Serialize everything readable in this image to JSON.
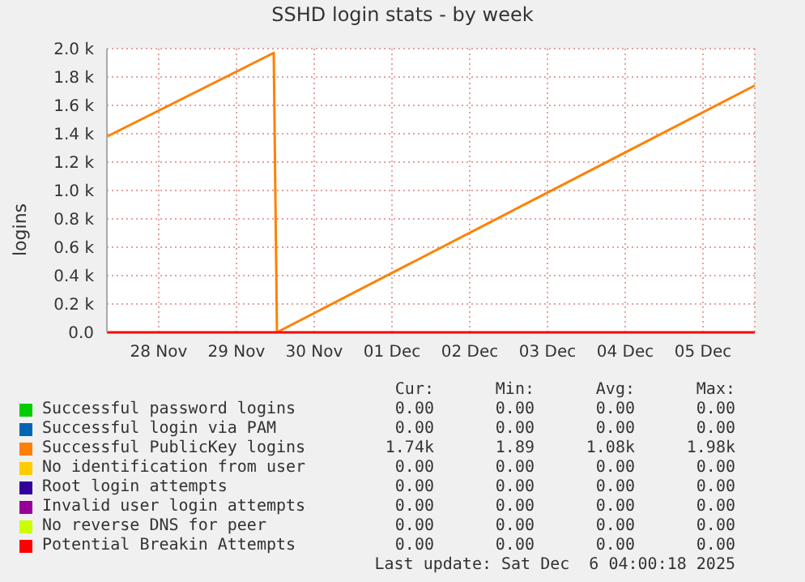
{
  "chart_data": {
    "type": "line",
    "title": "SSHD login stats - by week",
    "ylabel": "logins",
    "xlim": [
      "2025-11-27T20:00",
      "2025-12-06T04:00"
    ],
    "xticks": [
      {
        "value": "2025-11-28T12:00",
        "label": "28 Nov"
      },
      {
        "value": "2025-11-29T12:00",
        "label": "29 Nov"
      },
      {
        "value": "2025-11-30T12:00",
        "label": "30 Nov"
      },
      {
        "value": "2025-12-01T12:00",
        "label": "01 Dec"
      },
      {
        "value": "2025-12-02T12:00",
        "label": "02 Dec"
      },
      {
        "value": "2025-12-03T12:00",
        "label": "03 Dec"
      },
      {
        "value": "2025-12-04T12:00",
        "label": "04 Dec"
      },
      {
        "value": "2025-12-05T12:00",
        "label": "05 Dec"
      }
    ],
    "ylim": [
      0,
      2000
    ],
    "yticks": [
      {
        "value": 0,
        "label": "0.0"
      },
      {
        "value": 200,
        "label": "0.2 k"
      },
      {
        "value": 400,
        "label": "0.4 k"
      },
      {
        "value": 600,
        "label": "0.6 k"
      },
      {
        "value": 800,
        "label": "0.8 k"
      },
      {
        "value": 1000,
        "label": "1.0 k"
      },
      {
        "value": 1200,
        "label": "1.2 k"
      },
      {
        "value": 1400,
        "label": "1.4 k"
      },
      {
        "value": 1600,
        "label": "1.6 k"
      },
      {
        "value": 1800,
        "label": "1.8 k"
      },
      {
        "value": 2000,
        "label": "2.0 k"
      }
    ],
    "grid": true,
    "legend": "bottom",
    "marker": "none",
    "line_style": "solid",
    "series": [
      {
        "name": "Successful password logins",
        "color": "#00cc00"
      },
      {
        "name": "Successful login via PAM",
        "color": "#0066b3"
      },
      {
        "name": "Successful PublicKey logins",
        "color": "#ff8000",
        "x": [
          "2025-11-27T20:00",
          "2025-11-29T23:30",
          "2025-11-30T00:30",
          "2025-12-06T04:00"
        ],
        "values": [
          1380,
          1970,
          0,
          1740
        ]
      },
      {
        "name": "No identification from user",
        "color": "#ffcc00"
      },
      {
        "name": "Root login attempts",
        "color": "#330099"
      },
      {
        "name": "Invalid user login attempts",
        "color": "#990099"
      },
      {
        "name": "No reverse DNS for peer",
        "color": "#ccff00"
      },
      {
        "name": "Potential Breakin Attempts",
        "color": "#ff0000",
        "x": [
          "2025-11-27T20:00",
          "2025-12-06T04:00"
        ],
        "values": [
          0,
          0
        ]
      }
    ],
    "annotations": [
      "Cur:",
      "Min:",
      "Avg:",
      "Max:",
      "0.00",
      "0.00",
      "0.00",
      "0.00",
      "0.00",
      "0.00",
      "0.00",
      "0.00",
      "1.74k",
      "1.89",
      "1.08k",
      "1.98k",
      "0.00",
      "0.00",
      "0.00",
      "0.00",
      "0.00",
      "0.00",
      "0.00",
      "0.00",
      "0.00",
      "0.00",
      "0.00",
      "0.00",
      "0.00",
      "0.00",
      "0.00",
      "0.00",
      "0.00",
      "0.00",
      "0.00",
      "0.00",
      "Last update: Sat Dec  6 04:00:18 2025"
    ]
  }
}
